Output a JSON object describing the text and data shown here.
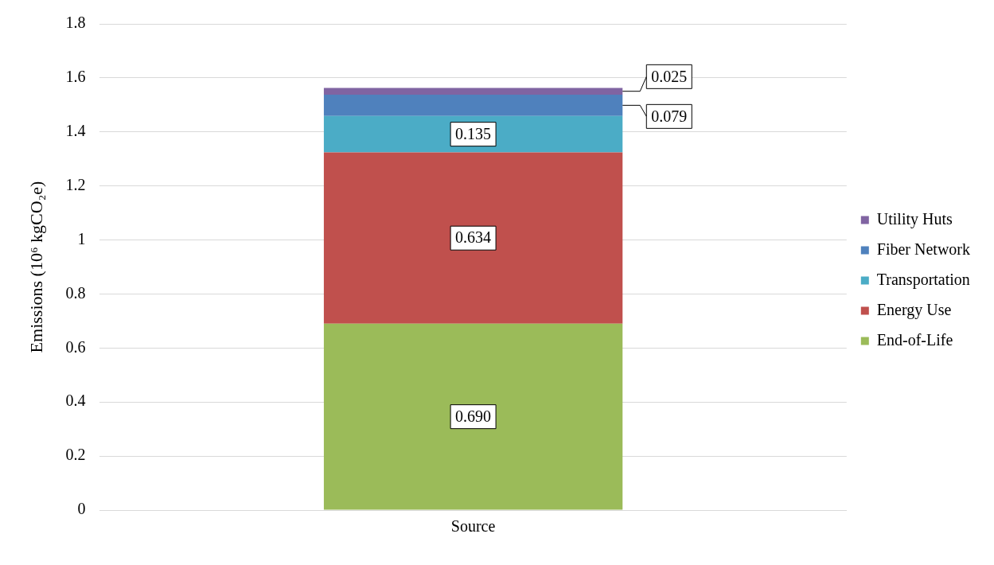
{
  "chart_data": {
    "type": "bar",
    "stacked": true,
    "categories": [
      "Source"
    ],
    "ylabel": "Emissions (10⁶ kgCO₂e)",
    "series": [
      {
        "name": "End-of-Life",
        "color": "#9bbb59",
        "values": [
          0.69
        ],
        "value_labels": [
          "0.690"
        ]
      },
      {
        "name": "Energy Use",
        "color": "#c0504d",
        "values": [
          0.634
        ],
        "value_labels": [
          "0.634"
        ]
      },
      {
        "name": "Transportation",
        "color": "#4bacc6",
        "values": [
          0.135
        ],
        "value_labels": [
          "0.135"
        ]
      },
      {
        "name": "Fiber Network",
        "color": "#4f81bd",
        "values": [
          0.079
        ],
        "value_labels": [
          "0.079"
        ]
      },
      {
        "name": "Utility Huts",
        "color": "#8064a2",
        "values": [
          0.025
        ],
        "value_labels": [
          "0.025"
        ]
      }
    ],
    "ylim": [
      0,
      1.8
    ],
    "yticks": [
      0,
      0.2,
      0.4,
      0.6,
      0.8,
      1,
      1.2,
      1.4,
      1.6,
      1.8
    ],
    "grid": "y",
    "legend": "right"
  }
}
